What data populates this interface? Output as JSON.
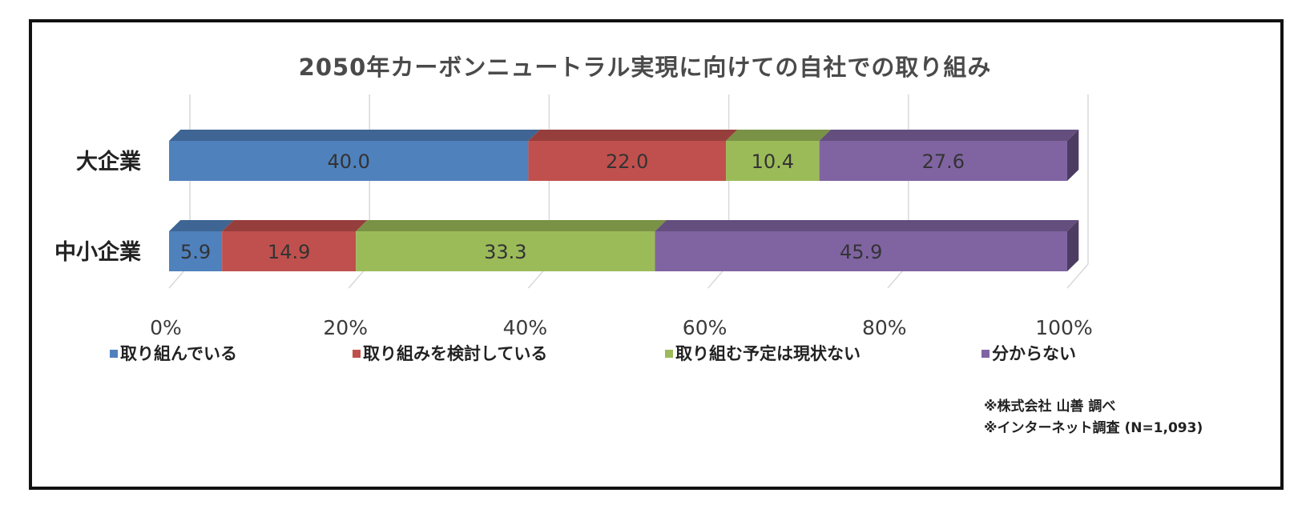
{
  "chart_data": {
    "type": "bar",
    "orientation": "horizontal",
    "stacked": true,
    "percent_scale": true,
    "title": "2050年カーボンニュートラル実現に向けての自社での取り組み",
    "categories": [
      "大企業",
      "中小企業"
    ],
    "series": [
      {
        "name": "取り組んでいる",
        "color": "#4f81bd",
        "values": [
          40.0,
          5.9
        ]
      },
      {
        "name": "取り組みを検討している",
        "color": "#c0504d",
        "values": [
          22.0,
          14.9
        ]
      },
      {
        "name": "取り組む予定は現状ない",
        "color": "#9bbb59",
        "values": [
          10.4,
          33.3
        ]
      },
      {
        "name": "分からない",
        "color": "#8064a2",
        "values": [
          27.6,
          45.9
        ]
      }
    ],
    "xlim": [
      0,
      100
    ],
    "xticks": [
      "0%",
      "20%",
      "40%",
      "60%",
      "80%",
      "100%"
    ],
    "grid": true,
    "legend_position": "bottom",
    "notes": [
      "※株式会社 山善 調べ",
      "※インターネット調査 (N=1,093)"
    ]
  }
}
